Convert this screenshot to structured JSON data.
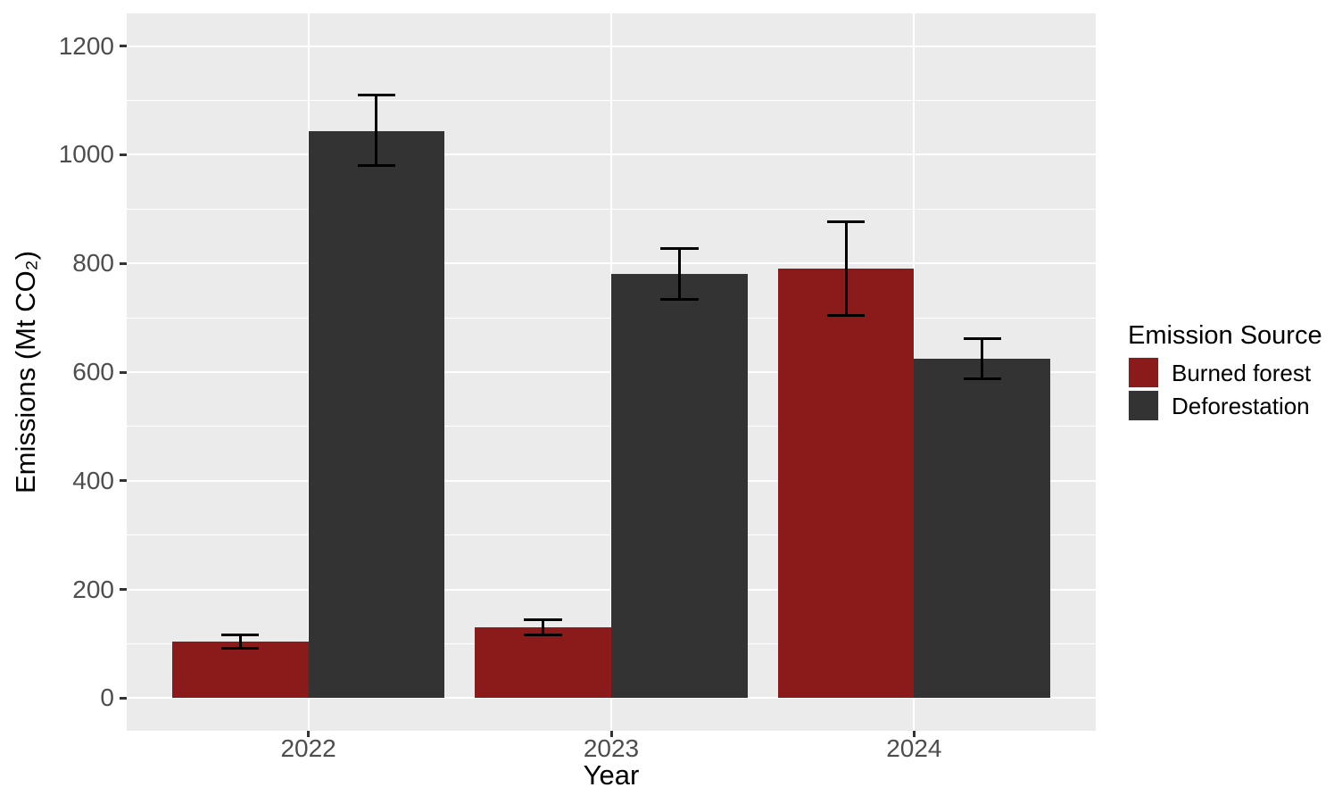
{
  "chart_data": {
    "type": "bar",
    "title": "",
    "xlabel": "Year",
    "ylabel": "Emissions (Mt CO₂)",
    "categories": [
      "2022",
      "2023",
      "2024"
    ],
    "series": [
      {
        "name": "Burned forest",
        "color": "#8B1A1A",
        "values": [
          104,
          130,
          790
        ],
        "error_low": [
          92,
          116,
          705
        ],
        "error_high": [
          116,
          145,
          876
        ]
      },
      {
        "name": "Deforestation",
        "color": "#333333",
        "values": [
          1043,
          780,
          624
        ],
        "error_low": [
          980,
          733,
          588
        ],
        "error_high": [
          1110,
          827,
          662
        ]
      }
    ],
    "ylim": [
      0,
      1200
    ],
    "yticks": [
      0,
      200,
      400,
      600,
      800,
      1000,
      1200
    ],
    "legend": {
      "title": "Emission Source",
      "position": "right"
    },
    "grid": "on",
    "panel_bg": "#EBEBEB",
    "grid_color": "#FFFFFF",
    "error_color": "#000000",
    "axis_text_color": "#4D4D4D",
    "tick_mark_color": "#333333"
  }
}
